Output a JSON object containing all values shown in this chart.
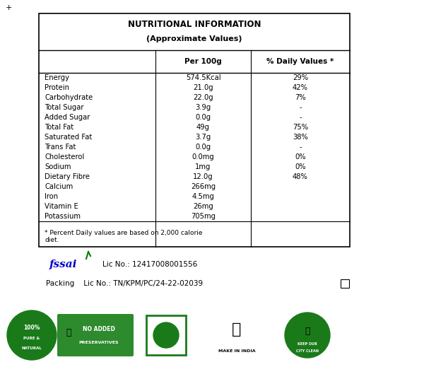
{
  "title_line1": "NUTRITIONAL INFORMATION",
  "title_line2": "(Approximate Values)",
  "header_col1": "",
  "header_col2": "Per 100g",
  "header_col3": "% Daily Values *",
  "rows": [
    [
      "Energy",
      "574.5Kcal",
      "29%"
    ],
    [
      "Protein",
      "21.0g",
      "42%"
    ],
    [
      "Carbohydrate",
      "22.0g",
      "7%"
    ],
    [
      "Total Sugar",
      "3.9g",
      "-"
    ],
    [
      "Added Sugar",
      "0.0g",
      "-"
    ],
    [
      "Total Fat",
      "49g",
      "75%"
    ],
    [
      "Saturated Fat",
      "3.7g",
      "38%"
    ],
    [
      "Trans Fat",
      "0.0g",
      "-"
    ],
    [
      "Cholesterol",
      "0.0mg",
      "0%"
    ],
    [
      "Sodium",
      "1mg",
      "0%"
    ],
    [
      "Dietary Fibre",
      "12.0g",
      "48%"
    ],
    [
      "Calcium",
      "266mg",
      ""
    ],
    [
      "Iron",
      "4.5mg",
      ""
    ],
    [
      "Vitamin E",
      "26mg",
      ""
    ],
    [
      "Potassium",
      "705mg",
      ""
    ]
  ],
  "footnote": "* Percent Daily values are based on 2,000 calorie\ndiet.",
  "fssai_text": "Lic No.: 12417008001556",
  "packing_text": "Packing    Lic No.: TN/KPM/PC/24-22-02039",
  "table_bg": "#ffffff",
  "border_color": "#000000",
  "text_color": "#000000",
  "dietary_fibre_underline": true,
  "bg_color": "#ffffff"
}
